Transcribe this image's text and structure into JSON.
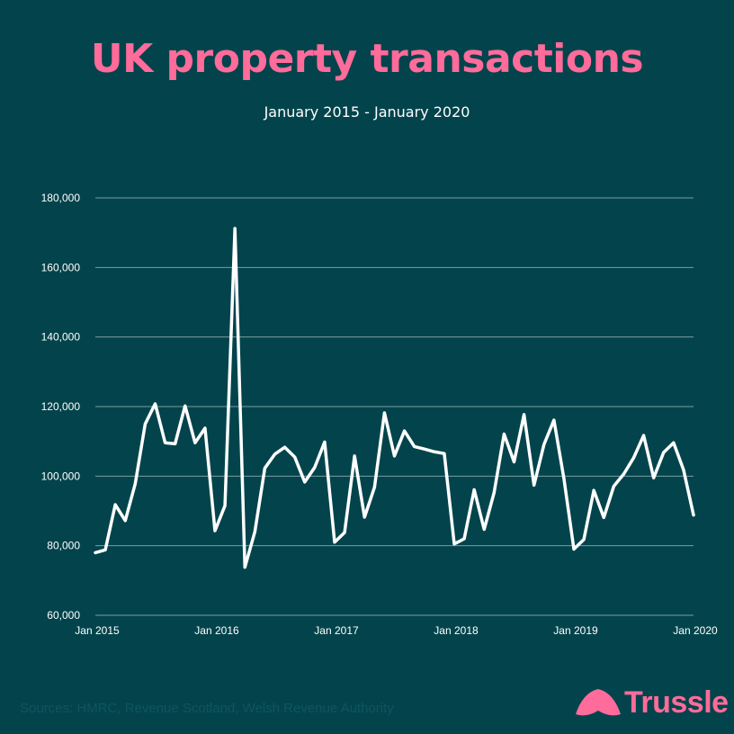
{
  "title": "UK property transactions",
  "subtitle": "January 2015 - January 2020",
  "source": "Sources: HMRC, Revenue Scotland, Welsh Revenue Authority",
  "brand": {
    "name": "Trussle",
    "color": "#ff6b9a"
  },
  "colors": {
    "background": "#03444c",
    "line": "#ffffff",
    "grid": "#7a9ca1",
    "title": "#ff6b9a"
  },
  "chart_data": {
    "type": "line",
    "title": "UK property transactions",
    "subtitle": "January 2015 - January 2020",
    "xlabel": "",
    "ylabel": "",
    "ylim": [
      60000,
      180000
    ],
    "yticks": [
      60000,
      80000,
      100000,
      120000,
      140000,
      160000,
      180000
    ],
    "ytick_labels": [
      "60,000",
      "80,000",
      "100,000",
      "120,000",
      "140,000",
      "160,000",
      "180,000"
    ],
    "xticks": [
      0,
      12,
      24,
      36,
      48,
      60
    ],
    "xtick_labels": [
      "Jan 2015",
      "Jan 2016",
      "Jan 2017",
      "Jan 2018",
      "Jan 2019",
      "Jan 2020"
    ],
    "grid": true,
    "series": [
      {
        "values": [
          78000,
          78800,
          91800,
          87200,
          97800,
          115000,
          120800,
          109600,
          109300,
          120200,
          109600,
          113800,
          84300,
          91500,
          171200,
          73800,
          84000,
          102300,
          106300,
          108300,
          105500,
          98300,
          102500,
          109800,
          81000,
          83800,
          105800,
          88200,
          96800,
          118200,
          105800,
          113000,
          108500,
          107800,
          107000,
          106500,
          80500,
          82000,
          96100,
          84700,
          95300,
          112100,
          104100,
          117700,
          97400,
          109100,
          116100,
          99300,
          79000,
          81800,
          95900,
          88100,
          97100,
          100600,
          105300,
          111700,
          99500,
          106800,
          109600,
          101800,
          88800
        ]
      }
    ]
  }
}
